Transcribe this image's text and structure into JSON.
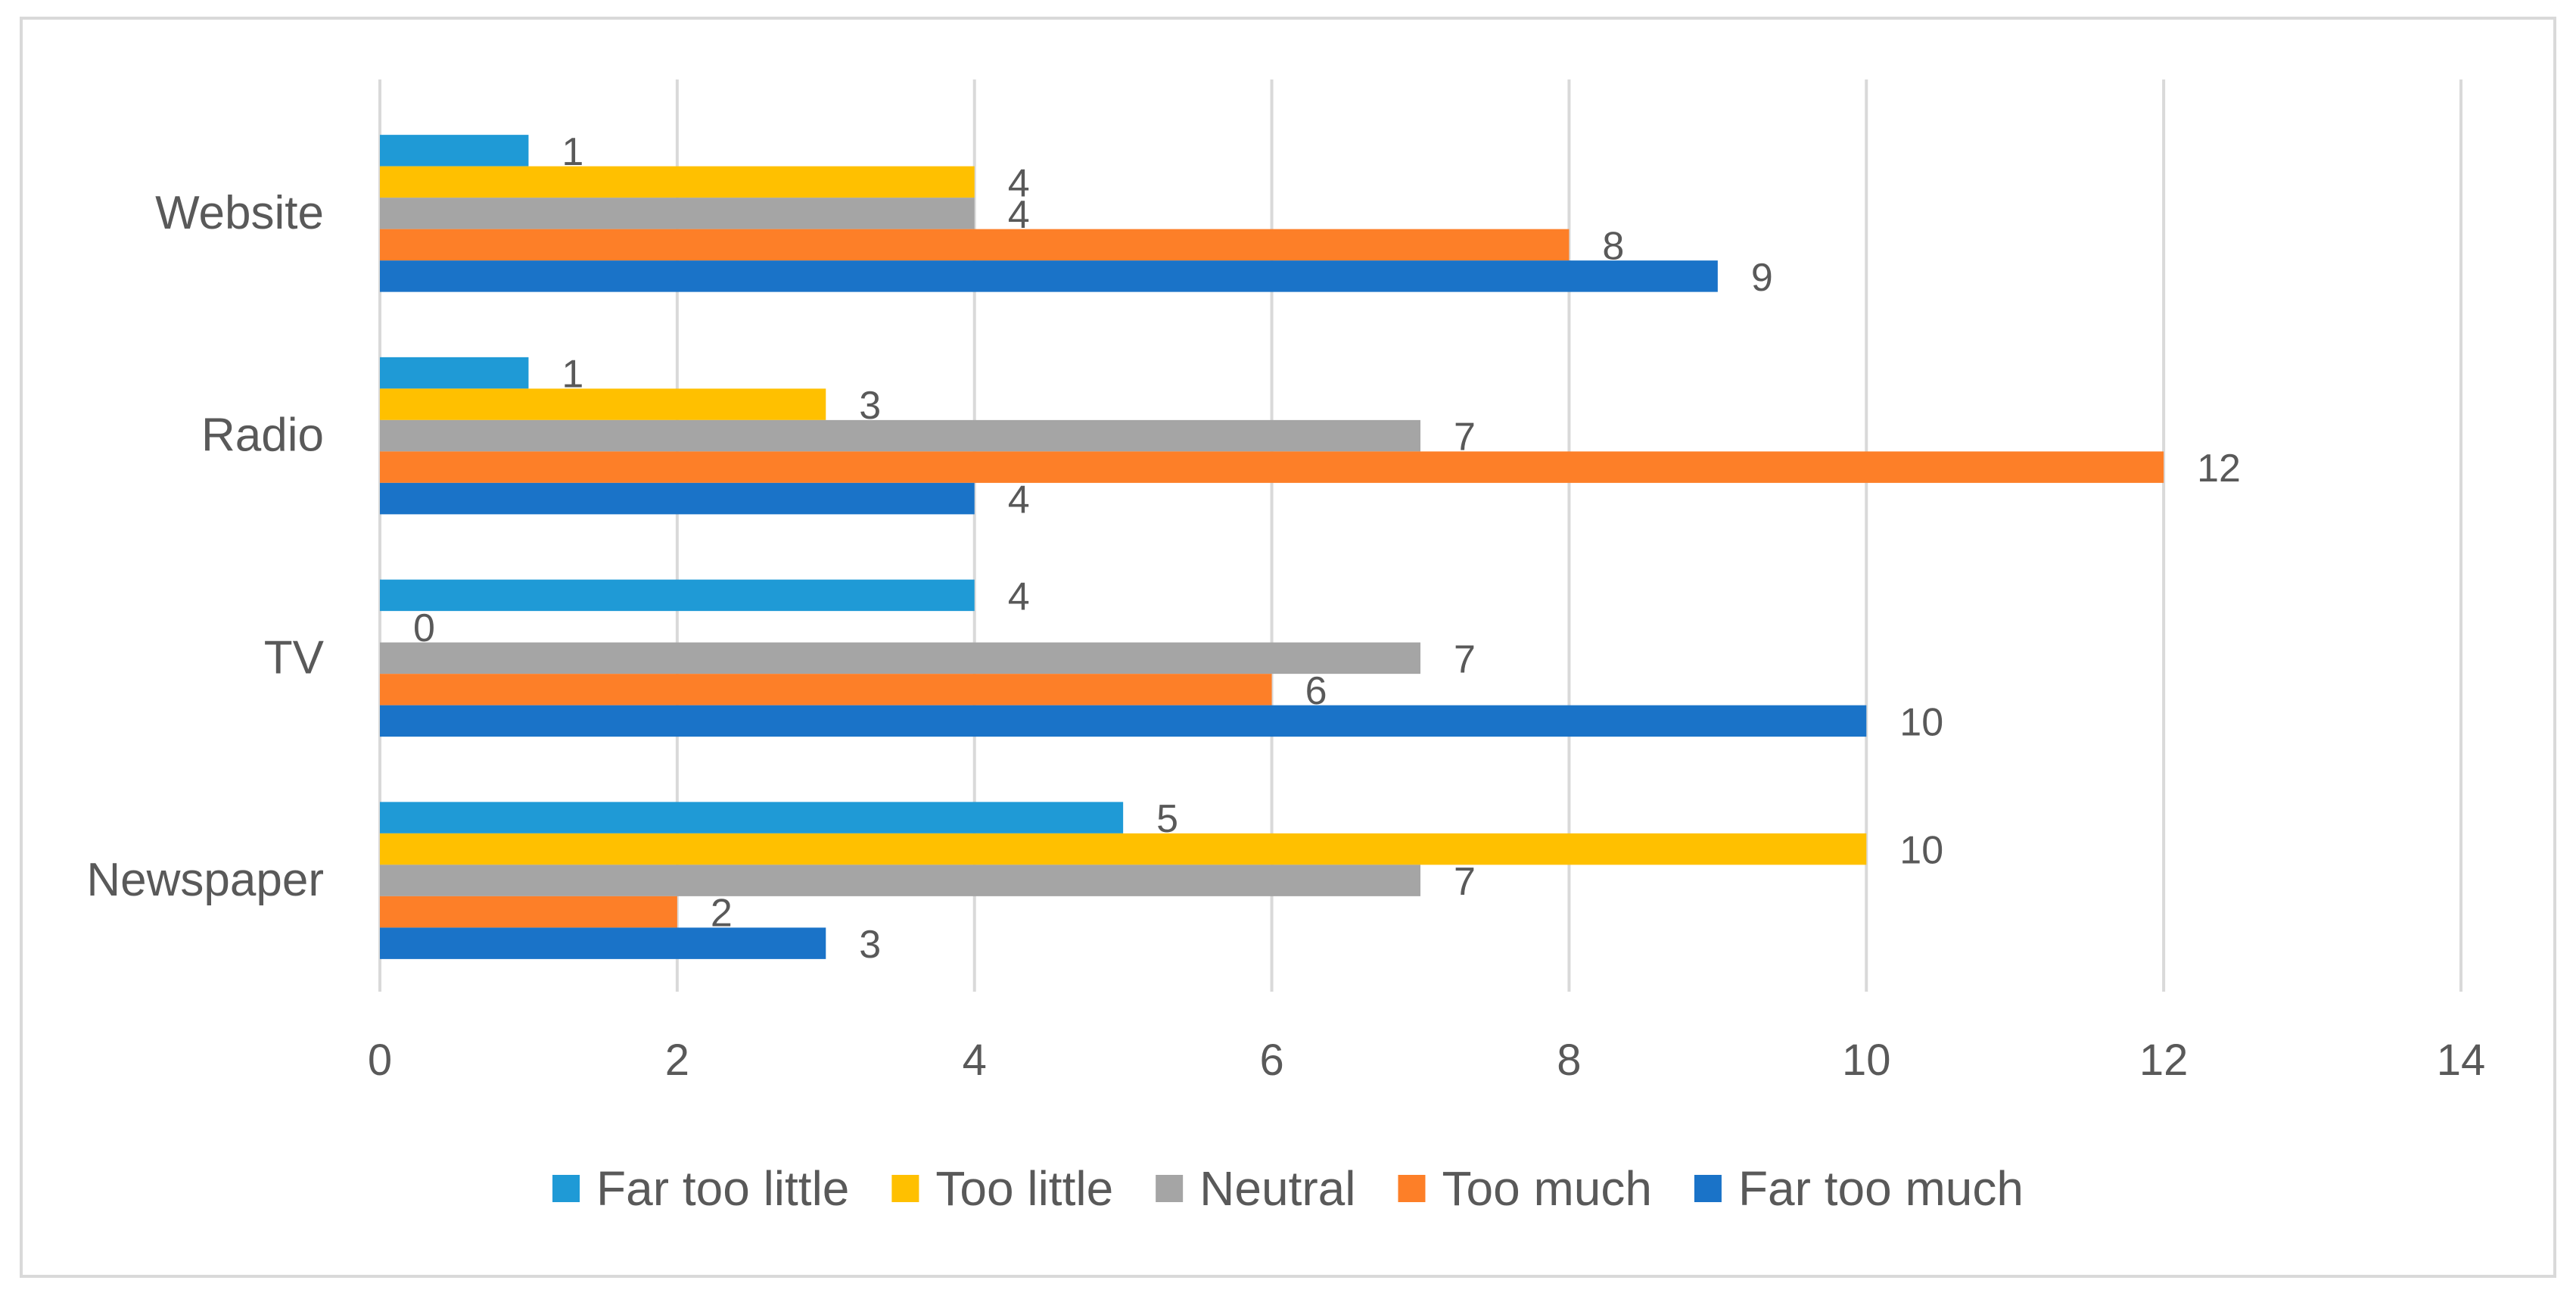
{
  "chart_data": {
    "type": "bar",
    "orientation": "horizontal",
    "title": "",
    "xlabel": "",
    "ylabel": "",
    "categories": [
      "Newspaper",
      "TV",
      "Radio",
      "Website"
    ],
    "x_ticks": [
      "0",
      "2",
      "4",
      "6",
      "8",
      "10",
      "12",
      "14"
    ],
    "xlim": [
      0,
      14
    ],
    "grid": "vertical",
    "legend": "bottom",
    "data_labels": true,
    "series": [
      {
        "name": "Far too little",
        "color": "#1f9ad6",
        "values": [
          5,
          4,
          1,
          1
        ]
      },
      {
        "name": "Too little",
        "color": "#ffc000",
        "values": [
          10,
          0,
          3,
          4
        ]
      },
      {
        "name": "Neutral",
        "color": "#a5a5a5",
        "values": [
          7,
          7,
          7,
          4
        ]
      },
      {
        "name": "Too much",
        "color": "#fd7f28",
        "values": [
          2,
          6,
          12,
          8
        ]
      },
      {
        "name": "Far too much",
        "color": "#1a73c8",
        "values": [
          3,
          10,
          4,
          9
        ]
      }
    ]
  }
}
